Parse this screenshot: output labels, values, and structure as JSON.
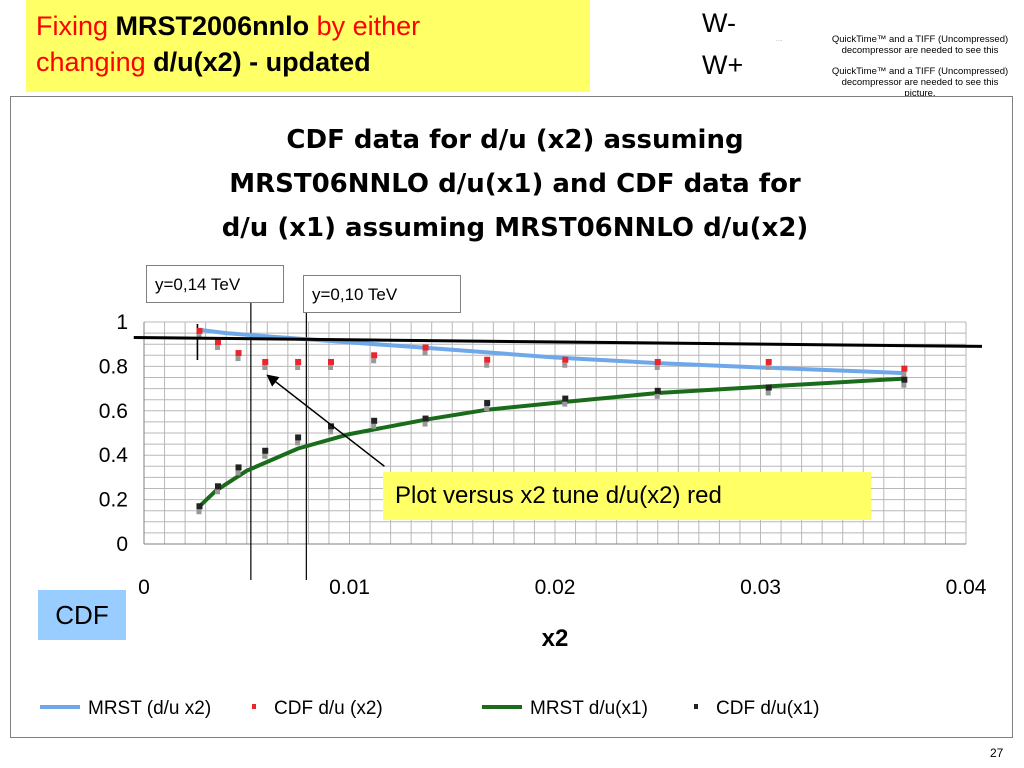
{
  "slide": {
    "title_part1": "Fixing ",
    "title_bold1": "MRST2006nnlo",
    "title_part2": " by either",
    "title_part3": "changing ",
    "title_bold2": "d/u(x2) - updated",
    "w_minus": "W-",
    "w_plus": "W+",
    "quicktime_1": "QuickTime™ and a TIFF (Uncompressed) decompressor are needed to see this picture.",
    "quicktime_2": "QuickTime™ and a TIFF (Uncompressed) decompressor are needed to see this picture.",
    "page_number": "27",
    "cdf_badge": "CDF",
    "colors": {
      "title_bg": "#ffff66",
      "title_red": "#ff0000",
      "badge_bg": "#99ccff"
    }
  },
  "annotations": {
    "y014": "y=0,14 TeV",
    "y010": "y=0,10 TeV",
    "plot_note": "Plot versus x2 tune d/u(x2) red"
  },
  "chart_data": {
    "type": "line",
    "title_lines": [
      "CDF data for d/u (x2) assuming",
      "MRST06NNLO   d/u(x1)  and CDF data for",
      "d/u (x1) assuming MRST06NNLO  d/u(x2)"
    ],
    "xlabel": "x2",
    "ylabel": "",
    "xlim": [
      0,
      0.04
    ],
    "ylim": [
      0,
      1
    ],
    "x_ticks": [
      "0",
      "0.01",
      "0.02",
      "0.03",
      "0.04"
    ],
    "y_ticks": [
      "0",
      "0.2",
      "0.4",
      "0.6",
      "0.8",
      "1"
    ],
    "grid": true,
    "legend_position": "bottom",
    "series": [
      {
        "name": "MRST (d/u x2)",
        "kind": "line",
        "color": "#6fa8e8",
        "x": [
          0.0027,
          0.004,
          0.006,
          0.009,
          0.012,
          0.015,
          0.02,
          0.025,
          0.03,
          0.037
        ],
        "y": [
          0.965,
          0.95,
          0.935,
          0.915,
          0.895,
          0.875,
          0.84,
          0.815,
          0.795,
          0.77
        ]
      },
      {
        "name": "CDF d/u (x2)",
        "kind": "points",
        "color": "#e8262c",
        "x": [
          0.0027,
          0.0036,
          0.0046,
          0.0059,
          0.0075,
          0.0091,
          0.0112,
          0.0137,
          0.0167,
          0.0205,
          0.025,
          0.0304,
          0.037
        ],
        "y": [
          0.96,
          0.91,
          0.86,
          0.82,
          0.82,
          0.82,
          0.85,
          0.885,
          0.83,
          0.83,
          0.82,
          0.82,
          0.79
        ]
      },
      {
        "name": "MRST d/u(x1)",
        "kind": "line",
        "color": "#1a6b1a",
        "x": [
          0.0027,
          0.0035,
          0.005,
          0.0075,
          0.01,
          0.0137,
          0.0167,
          0.0205,
          0.025,
          0.0304,
          0.037
        ],
        "y": [
          0.17,
          0.24,
          0.33,
          0.43,
          0.495,
          0.56,
          0.605,
          0.64,
          0.68,
          0.71,
          0.745
        ]
      },
      {
        "name": "CDF d/u(x1)",
        "kind": "points",
        "color": "#222222",
        "x": [
          0.0027,
          0.0036,
          0.0046,
          0.0059,
          0.0075,
          0.0091,
          0.0112,
          0.0137,
          0.0167,
          0.0205,
          0.025,
          0.0304,
          0.037
        ],
        "y": [
          0.17,
          0.26,
          0.345,
          0.42,
          0.48,
          0.53,
          0.555,
          0.565,
          0.635,
          0.655,
          0.69,
          0.705,
          0.74
        ]
      }
    ],
    "reference_line": {
      "x": [
        -0.0005,
        0.04
      ],
      "y": [
        0.93,
        0.89
      ]
    },
    "vertical_markers": [
      {
        "x": 0.0052,
        "label_key": "y014"
      },
      {
        "x": 0.0079,
        "label_key": "y010"
      }
    ],
    "arrow": {
      "from": [
        0.0117,
        0.35
      ],
      "to": [
        0.006,
        0.76
      ]
    }
  }
}
